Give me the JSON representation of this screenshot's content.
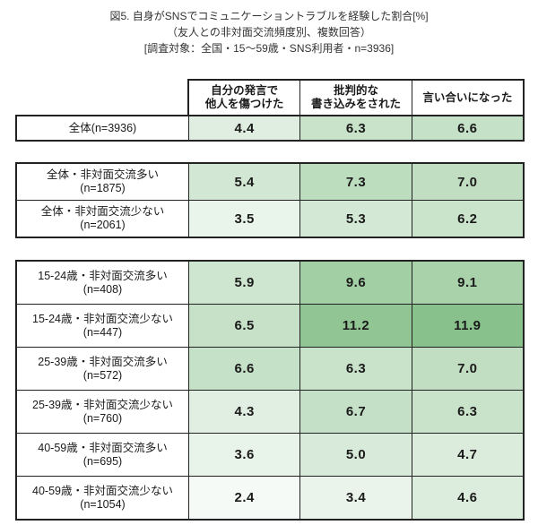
{
  "title": {
    "line1": "図5. 自身がSNSでコミュニケーショントラブルを経験した割合[%]",
    "line2": "（友人との非対面交流頻度別、複数回答）",
    "line3": "[調査対象：全国・15〜59歳・SNS利用者・n=3936]"
  },
  "chart_data": {
    "type": "heatmap",
    "value_unit": "%",
    "columns": [
      [
        "自分の発言で",
        "他人を傷つけた"
      ],
      [
        "批判的な",
        "書き込みをされた"
      ],
      [
        "言い合いになった"
      ]
    ],
    "blocks": [
      {
        "rows": [
          {
            "label": "全体(n=3936)",
            "sublabel": "",
            "values": [
              4.4,
              6.3,
              6.6
            ]
          }
        ]
      },
      {
        "rows": [
          {
            "label": "全体・非対面交流多い",
            "sublabel": "(n=1875)",
            "values": [
              5.4,
              7.3,
              7.0
            ]
          },
          {
            "label": "全体・非対面交流少ない",
            "sublabel": "(n=2061)",
            "values": [
              3.5,
              5.3,
              6.2
            ]
          }
        ]
      },
      {
        "rows": [
          {
            "label": "15-24歳・非対面交流多い",
            "sublabel": "(n=408)",
            "values": [
              5.9,
              9.6,
              9.1
            ]
          },
          {
            "label": "15-24歳・非対面交流少ない",
            "sublabel": "(n=447)",
            "values": [
              6.5,
              11.2,
              11.9
            ]
          },
          {
            "label": "25-39歳・非対面交流多い",
            "sublabel": "(n=572)",
            "values": [
              6.6,
              6.3,
              7.0
            ]
          },
          {
            "label": "25-39歳・非対面交流少ない",
            "sublabel": "(n=760)",
            "values": [
              4.3,
              6.7,
              6.3
            ]
          },
          {
            "label": "40-59歳・非対面交流多い",
            "sublabel": "(n=695)",
            "values": [
              3.6,
              5.0,
              4.7
            ]
          },
          {
            "label": "40-59歳・非対面交流少ない",
            "sublabel": "(n=1054)",
            "values": [
              2.4,
              3.4,
              4.6
            ]
          }
        ]
      }
    ],
    "heatmap": {
      "min_value": 1.6,
      "max_value": 12.2,
      "min_color": "#ffffff",
      "max_color": "#85bf88"
    },
    "border_color": "#222222",
    "title_color": "#333333"
  }
}
